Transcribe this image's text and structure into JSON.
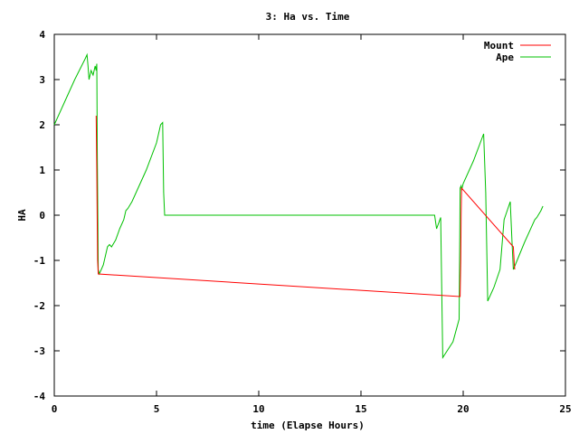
{
  "chart_data": {
    "type": "line",
    "title": "3: Ha vs. Time",
    "xlabel": "time (Elapse Hours)",
    "ylabel": "HA",
    "xlim": [
      0,
      25
    ],
    "ylim": [
      -4,
      4
    ],
    "x_ticks": [
      "0",
      "5",
      "10",
      "15",
      "20",
      "25"
    ],
    "y_ticks": [
      "-4",
      "-3",
      "-2",
      "-1",
      "0",
      "1",
      "2",
      "3",
      "4"
    ],
    "grid": false,
    "legend": "top-right",
    "series": [
      {
        "name": "Mount",
        "color": "#ff0000",
        "x": [
          2.05,
          2.08,
          2.1,
          2.12,
          2.15,
          19.85,
          19.88,
          19.9,
          19.92,
          22.45,
          22.48,
          22.5,
          22.52
        ],
        "y": [
          2.2,
          1.0,
          -0.2,
          -1.0,
          -1.3,
          -1.8,
          -1.0,
          0.0,
          0.6,
          -0.7,
          -0.9,
          -1.1,
          -1.2
        ]
      },
      {
        "name": "Ape",
        "color": "#00c000",
        "x": [
          0.0,
          0.5,
          1.0,
          1.5,
          1.6,
          1.65,
          1.7,
          1.8,
          1.9,
          2.0,
          2.05,
          2.08,
          2.1,
          2.15,
          2.2,
          2.3,
          2.4,
          2.5,
          2.6,
          2.7,
          2.8,
          3.0,
          3.2,
          3.4,
          3.5,
          3.6,
          3.8,
          4.0,
          4.5,
          5.0,
          5.2,
          5.3,
          5.35,
          5.4,
          5.45,
          6.0,
          10.0,
          15.0,
          18.5,
          18.6,
          18.7,
          18.9,
          19.0,
          19.5,
          19.8,
          19.85,
          19.9,
          19.92,
          20.0,
          20.5,
          21.0,
          21.1,
          21.2,
          21.5,
          21.8,
          22.0,
          22.3,
          22.4,
          22.45,
          22.5,
          23.0,
          23.5,
          23.6,
          23.8,
          23.9
        ],
        "y": [
          2.0,
          2.5,
          3.0,
          3.45,
          3.55,
          3.3,
          3.0,
          3.2,
          3.1,
          3.3,
          3.2,
          3.35,
          1.5,
          -1.2,
          -1.3,
          -1.2,
          -1.1,
          -0.9,
          -0.7,
          -0.65,
          -0.7,
          -0.55,
          -0.3,
          -0.1,
          0.1,
          0.15,
          0.3,
          0.5,
          1.0,
          1.6,
          2.0,
          2.05,
          0.5,
          0.0,
          0.0,
          0.0,
          0.0,
          0.0,
          0.0,
          0.0,
          -0.3,
          -0.05,
          -3.15,
          -2.8,
          -2.3,
          0.6,
          0.65,
          0.55,
          0.7,
          1.2,
          1.8,
          0.5,
          -1.9,
          -1.6,
          -1.2,
          -0.1,
          0.3,
          -0.7,
          -1.2,
          -1.15,
          -0.6,
          -0.1,
          -0.05,
          0.1,
          0.2
        ]
      }
    ]
  }
}
